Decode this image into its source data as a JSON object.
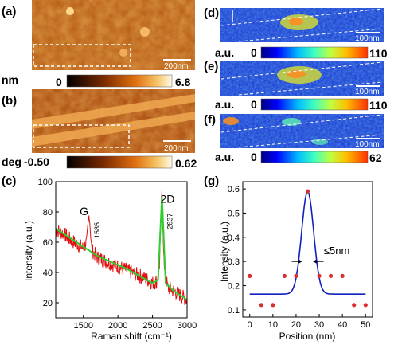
{
  "panels": {
    "a": {
      "label": "(a)",
      "scalebar": "200nm",
      "unit": "nm",
      "min": "0",
      "max": "6.8"
    },
    "b": {
      "label": "(b)",
      "scalebar": "200nm",
      "unit": "deg",
      "min": "-0.50",
      "max": "0.62"
    },
    "c": {
      "label": "(c)"
    },
    "d": {
      "label": "(d)",
      "scalebar": "100nm",
      "unit": "a.u.",
      "min": "0",
      "max": "110"
    },
    "e": {
      "label": "(e)",
      "scalebar": "100nm",
      "unit": "a.u.",
      "min": "0",
      "max": "110"
    },
    "f": {
      "label": "(f)",
      "scalebar": "100nm",
      "unit": "a.u.",
      "min": "0",
      "max": "62"
    },
    "g": {
      "label": "(g)"
    }
  },
  "colors": {
    "afm_dark": "#3a1600",
    "afm_mid": "#c8651a",
    "afm_light": "#f2b060",
    "spectrum": "#e01010",
    "fit_green": "#33cc33",
    "map_blue": "#1a30d0",
    "profile_blue": "#1020c0",
    "profile_points": "#d83030"
  },
  "chart_data": [
    {
      "type": "line",
      "panel": "c",
      "xlabel": "Raman shift (cm⁻¹)",
      "ylabel": "Intensity (a.u.)",
      "xlim": [
        1100,
        3000
      ],
      "ylim": [
        10,
        100
      ],
      "xticks": [
        1500,
        2000,
        2500,
        3000
      ],
      "yticks": [
        20,
        40,
        60,
        80,
        100
      ],
      "annotations": [
        {
          "text": "G",
          "x": 1585,
          "y": 78
        },
        {
          "text": "1585",
          "x": 1585,
          "y": 70
        },
        {
          "text": "2D",
          "x": 2637,
          "y": 86
        },
        {
          "text": "2637",
          "x": 2637,
          "y": 77
        }
      ],
      "series": [
        {
          "x": [
            1100,
            1200,
            1300,
            1400,
            1500,
            1550,
            1585,
            1620,
            1700,
            1800,
            1900,
            2000,
            2100,
            2200,
            2300,
            2400,
            2500,
            2560,
            2600,
            2637,
            2670,
            2720,
            2800,
            2900,
            3000
          ],
          "values": [
            68,
            66,
            62,
            59,
            56,
            60,
            80,
            55,
            50,
            48,
            46,
            44,
            42,
            40,
            38,
            36,
            33,
            34,
            45,
            92,
            42,
            30,
            28,
            25,
            22
          ]
        },
        {
          "x": [
            1100,
            1300,
            1500,
            1700,
            1900,
            2100,
            2300,
            2500,
            2580,
            2637,
            2690,
            2800,
            3000
          ],
          "values": [
            69,
            63,
            57,
            51,
            47,
            43,
            38,
            33,
            35,
            91,
            33,
            28,
            22
          ]
        }
      ]
    },
    {
      "type": "scatter",
      "panel": "g",
      "xlabel": "Position (nm)",
      "ylabel": "Intensity (a.u.)",
      "xlim": [
        -3,
        53
      ],
      "ylim": [
        0.07,
        0.63
      ],
      "xticks": [
        0,
        10,
        20,
        30,
        40,
        50
      ],
      "yticks": [
        0.1,
        0.2,
        0.3,
        0.4,
        0.5,
        0.6
      ],
      "annotations": [
        {
          "text": "≤5nm",
          "x": 32,
          "y": 0.33
        }
      ],
      "points": {
        "x": [
          0,
          5,
          10,
          15,
          20,
          25,
          30,
          35,
          40,
          45,
          50
        ],
        "y": [
          0.24,
          0.12,
          0.12,
          0.24,
          0.24,
          0.59,
          0.24,
          0.24,
          0.24,
          0.12,
          0.12
        ]
      },
      "fit": {
        "baseline": 0.165,
        "amplitude": 0.425,
        "center": 25,
        "sigma": 2.6
      }
    }
  ]
}
